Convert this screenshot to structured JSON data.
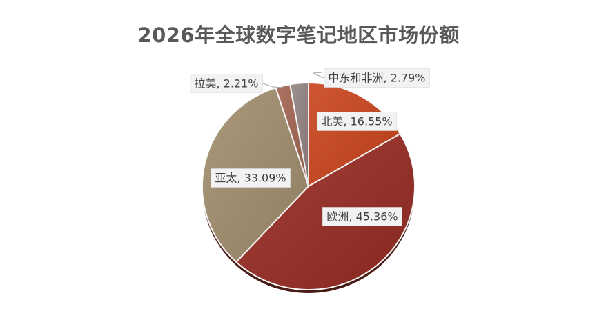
{
  "chart_data": {
    "type": "pie",
    "title": "2026年全球数字笔记地区市场份额",
    "slices": [
      {
        "name": "北美",
        "value": 16.55,
        "label": "北美, 16.55%",
        "color": "#c9441c"
      },
      {
        "name": "欧洲",
        "value": 45.36,
        "label": "欧洲, 45.36%",
        "color": "#962b23"
      },
      {
        "name": "亚太",
        "value": 33.09,
        "label": "亚太, 33.09%",
        "color": "#a08d6c"
      },
      {
        "name": "拉美",
        "value": 2.21,
        "label": "拉美, 2.21%",
        "color": "#a36452"
      },
      {
        "name": "中东和非洲",
        "value": 2.79,
        "label": "中东和非洲, 2.79%",
        "color": "#948383"
      }
    ],
    "start": "12 o'clock",
    "direction": "clockwise",
    "legend": "none",
    "data_labels": "category, percentage"
  }
}
